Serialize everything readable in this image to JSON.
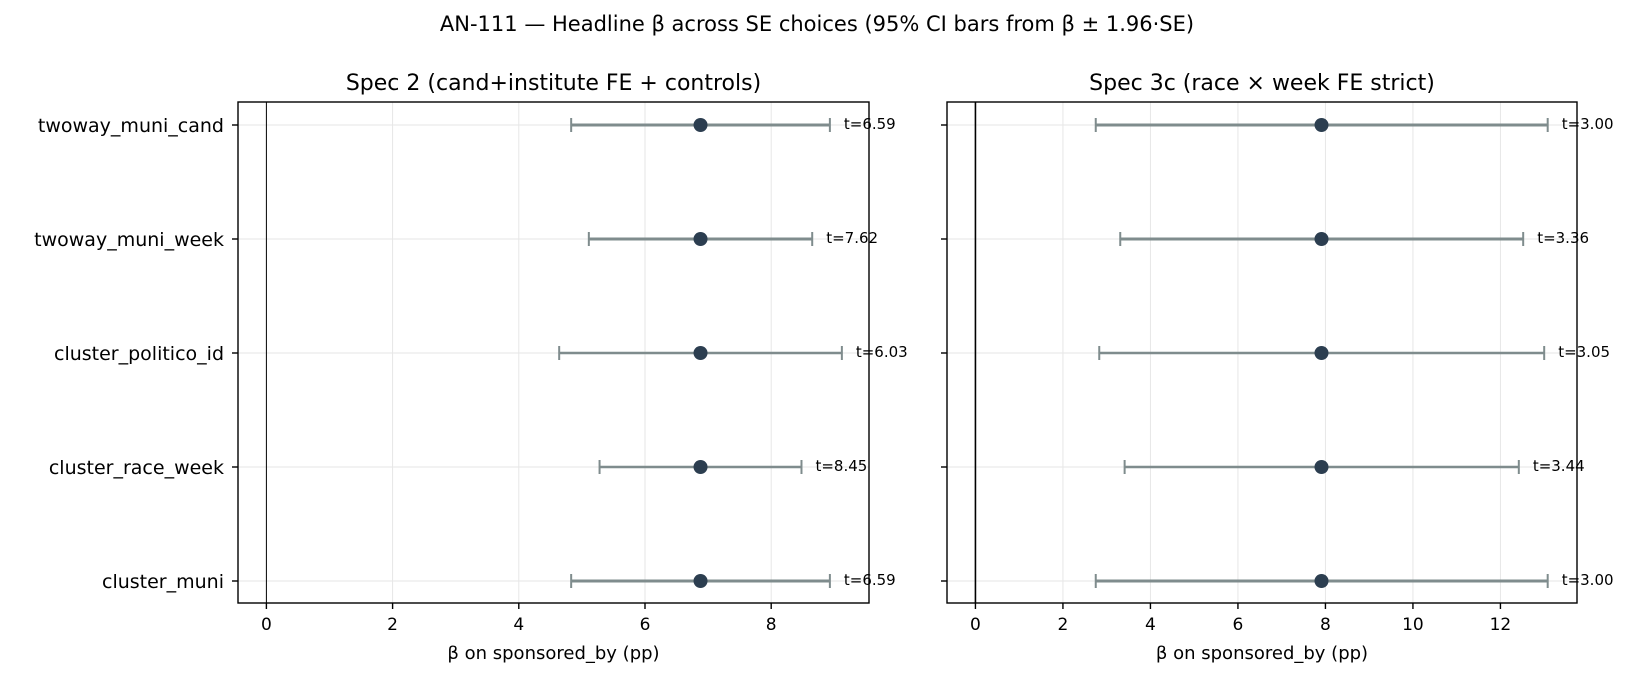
{
  "figure": {
    "title": "AN-111 — Headline β across SE choices (95% CI bars from β ± 1.96·SE)"
  },
  "colors": {
    "point": "#2c3e50",
    "errorbar": "#7f8c8d",
    "grid": "#e6e6e6",
    "zero_line": "#000000"
  },
  "chart_data": [
    {
      "type": "scatter",
      "subtype": "forest-plot-with-error-bars",
      "title": "Spec 2 (cand+institute FE + controls)",
      "xlabel": "β on sponsored_by (pp)",
      "ylabel": "",
      "xlim": [
        -0.45,
        9.55
      ],
      "xticks": [
        0,
        2,
        4,
        6,
        8
      ],
      "grid": true,
      "categories": [
        "twoway_muni_cand",
        "twoway_muni_week",
        "cluster_politico_id",
        "cluster_race_week",
        "cluster_muni"
      ],
      "beta": [
        6.88,
        6.88,
        6.88,
        6.88,
        6.88
      ],
      "ci_low": [
        4.83,
        5.11,
        4.64,
        5.28,
        4.83
      ],
      "ci_high": [
        8.93,
        8.65,
        9.12,
        8.48,
        8.93
      ],
      "annotations": [
        "t=6.59",
        "t=7.62",
        "t=6.03",
        "t=8.45",
        "t=6.59"
      ]
    },
    {
      "type": "scatter",
      "subtype": "forest-plot-with-error-bars",
      "title": "Spec 3c (race × week FE strict)",
      "xlabel": "β on sponsored_by (pp)",
      "ylabel": "",
      "xlim": [
        -0.65,
        13.75
      ],
      "xticks": [
        0,
        2,
        4,
        6,
        8,
        10,
        12
      ],
      "grid": true,
      "categories": [
        "twoway_muni_cand",
        "twoway_muni_week",
        "cluster_politico_id",
        "cluster_race_week",
        "cluster_muni"
      ],
      "beta": [
        7.91,
        7.91,
        7.91,
        7.91,
        7.91
      ],
      "ci_low": [
        2.75,
        3.31,
        2.83,
        3.41,
        2.75
      ],
      "ci_high": [
        13.08,
        12.52,
        13.0,
        12.42,
        13.08
      ],
      "annotations": [
        "t=3.00",
        "t=3.36",
        "t=3.05",
        "t=3.44",
        "t=3.00"
      ]
    }
  ]
}
